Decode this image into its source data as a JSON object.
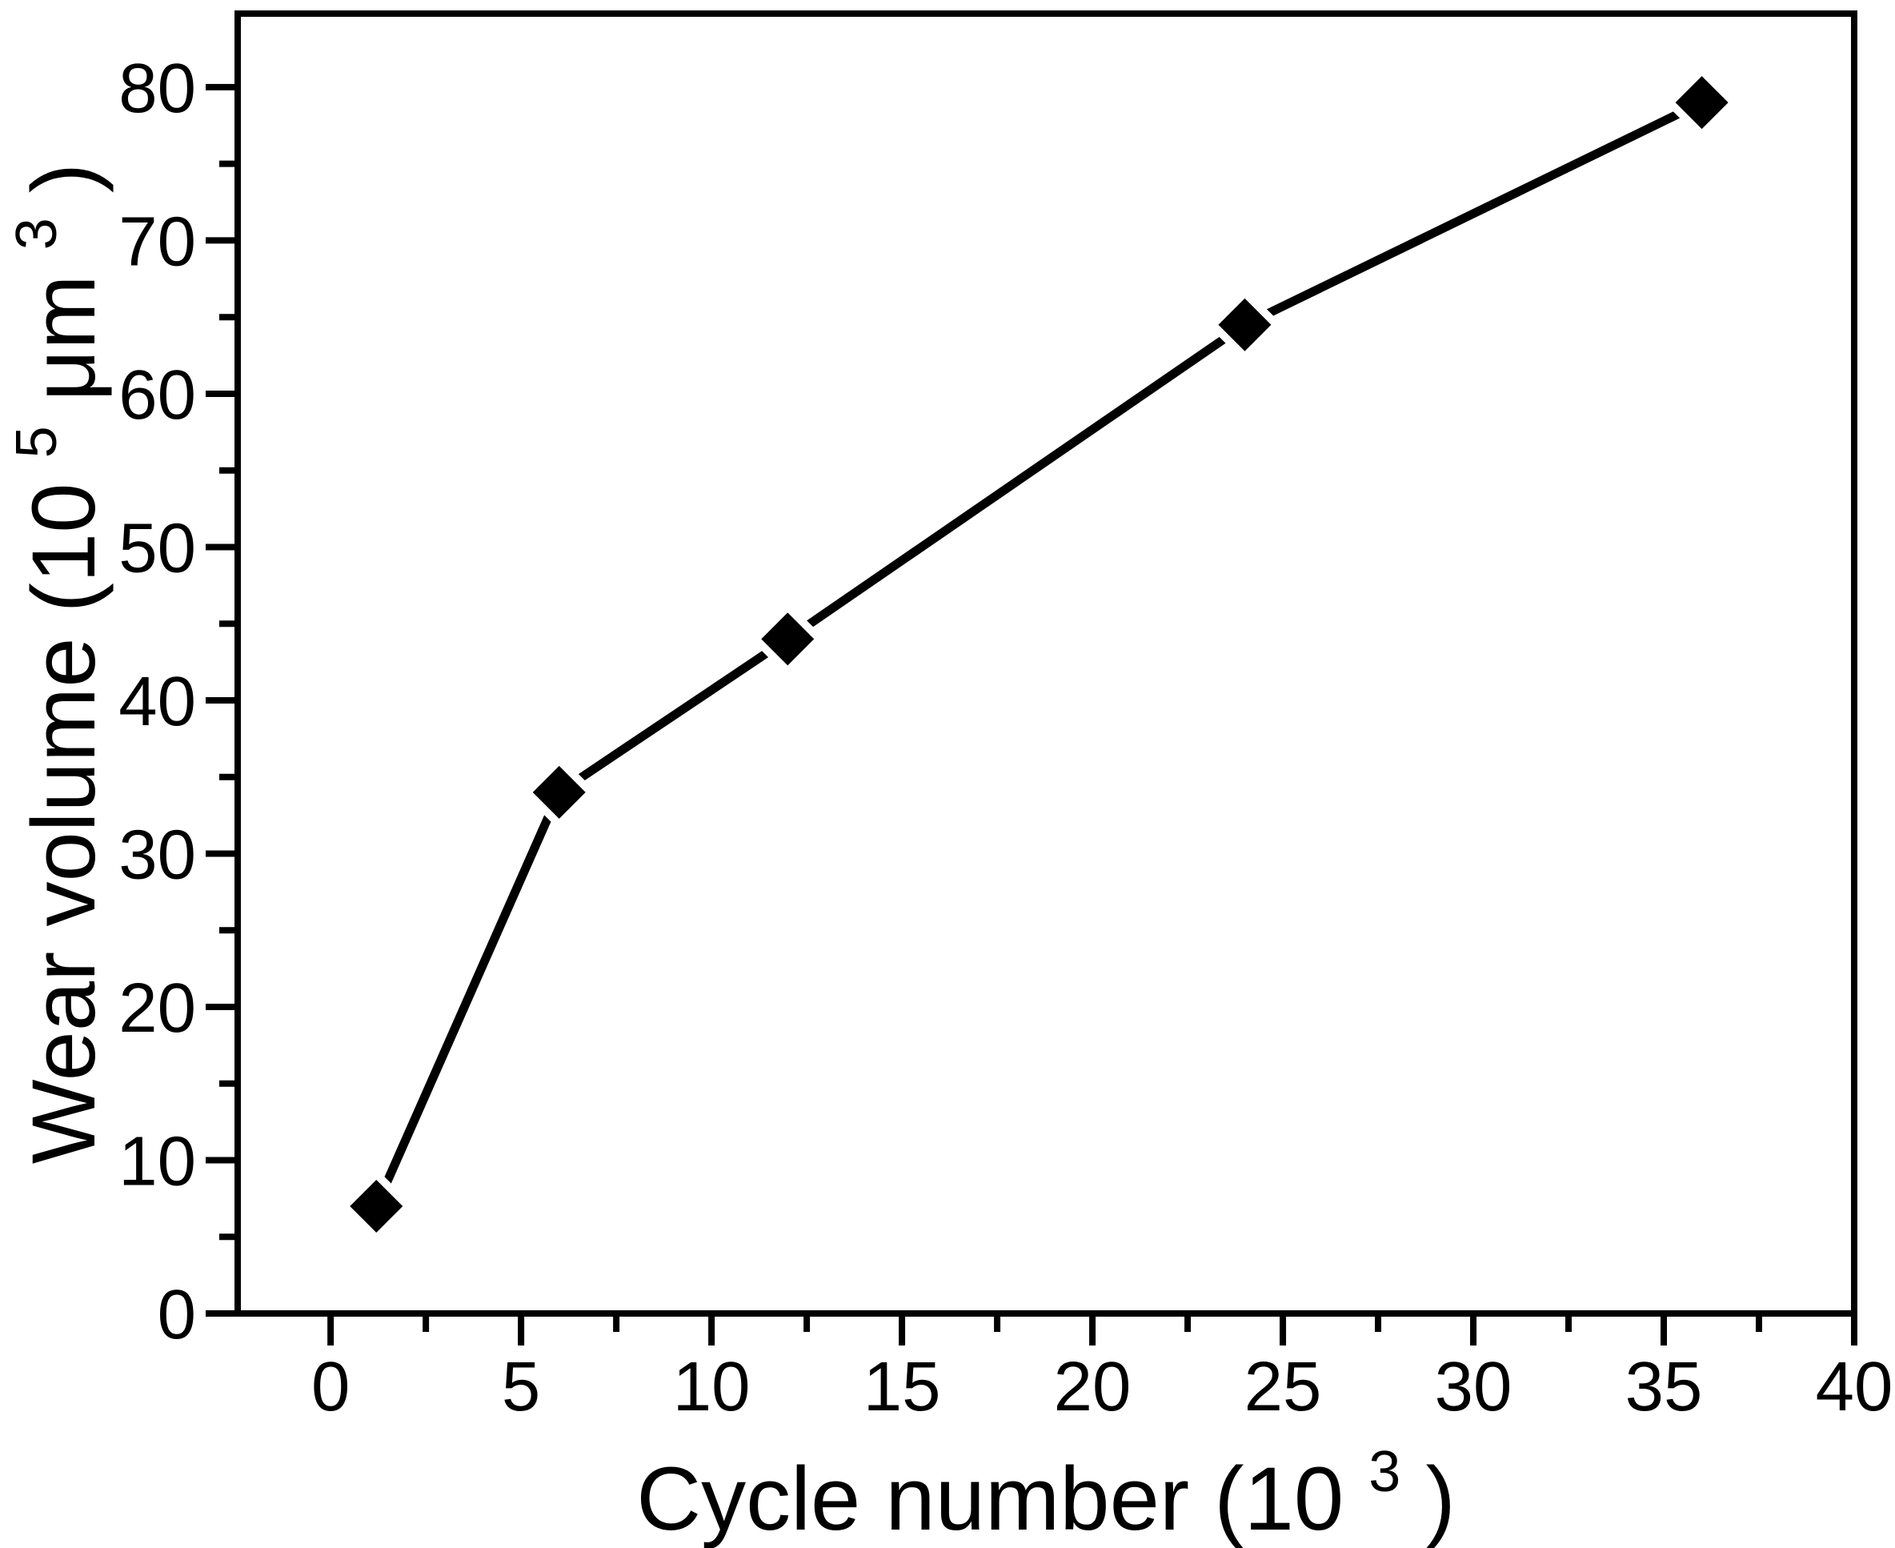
{
  "chart_data": {
    "type": "line",
    "title": "",
    "xlabel": {
      "main": "Cycle number (10",
      "sup": "3",
      "close": ")"
    },
    "ylabel": {
      "main": "Wear volume (10",
      "sup1": "5",
      "mid": "μm",
      "sup2": "3",
      "close": ")"
    },
    "series": [
      {
        "name": "wear-volume",
        "x": [
          1.2,
          6,
          12,
          24,
          36
        ],
        "y": [
          7,
          34,
          44,
          64.5,
          79
        ]
      }
    ],
    "x_ticks": [
      0,
      5,
      10,
      15,
      20,
      25,
      30,
      35,
      40
    ],
    "y_ticks": [
      0,
      10,
      20,
      30,
      40,
      50,
      60,
      70,
      80
    ],
    "x_minor_ticks": [
      2.5,
      7.5,
      12.5,
      17.5,
      22.5,
      27.5,
      32.5,
      37.5
    ],
    "y_minor_ticks": [
      5,
      15,
      25,
      35,
      45,
      55,
      65,
      75
    ],
    "xlim": [
      -2.44,
      40
    ],
    "ylim": [
      0,
      84.8
    ],
    "marker": "diamond",
    "line_color": "#000000",
    "marker_color": "#000000",
    "marker_halo_color": "#ffffff",
    "axis_color": "#000000",
    "background": "#ffffff",
    "grid": false,
    "legend": null
  }
}
